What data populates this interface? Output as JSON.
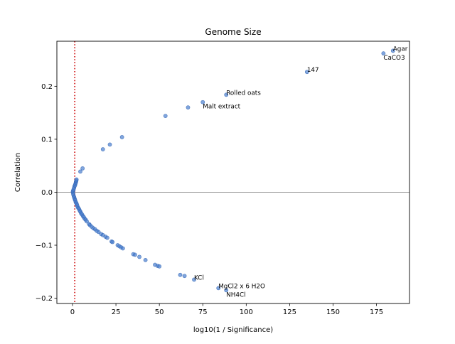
{
  "chart_data": {
    "type": "scatter",
    "title": "Genome Size",
    "xlabel": "log10(1 / Significance)",
    "ylabel": "Correlation",
    "xlim": [
      -9,
      194
    ],
    "ylim": [
      -0.21,
      0.285
    ],
    "xticks": [
      0,
      25,
      50,
      75,
      100,
      125,
      150,
      175
    ],
    "yticks": [
      -0.2,
      -0.1,
      0.0,
      0.1,
      0.2
    ],
    "point_color": "#4a7fcf",
    "point_edge_color": "#2a5fb0",
    "threshold_line": {
      "x": 1.3,
      "color": "#cc0000",
      "style": "dotted"
    },
    "zero_line": {
      "y": 0,
      "color": "#888888"
    },
    "grid": false,
    "points": [
      {
        "x": 0.3,
        "y": -0.002
      },
      {
        "x": 0.2,
        "y": 0.001
      },
      {
        "x": 0.4,
        "y": 0.003
      },
      {
        "x": 0.5,
        "y": -0.005
      },
      {
        "x": 0.6,
        "y": 0.005
      },
      {
        "x": 0.8,
        "y": -0.008
      },
      {
        "x": 0.9,
        "y": 0.008
      },
      {
        "x": 1.0,
        "y": -0.01
      },
      {
        "x": 1.1,
        "y": 0.011
      },
      {
        "x": 1.3,
        "y": -0.013
      },
      {
        "x": 1.4,
        "y": 0.013
      },
      {
        "x": 1.5,
        "y": -0.015
      },
      {
        "x": 1.6,
        "y": 0.015
      },
      {
        "x": 1.8,
        "y": -0.018
      },
      {
        "x": 1.9,
        "y": 0.018
      },
      {
        "x": 2.1,
        "y": -0.02
      },
      {
        "x": 2.0,
        "y": 0.02
      },
      {
        "x": 2.4,
        "y": -0.022
      },
      {
        "x": 2.2,
        "y": 0.022
      },
      {
        "x": 2.3,
        "y": 0.024
      },
      {
        "x": 2.7,
        "y": -0.025
      },
      {
        "x": 3.0,
        "y": -0.028
      },
      {
        "x": 3.4,
        "y": -0.03
      },
      {
        "x": 3.8,
        "y": -0.032
      },
      {
        "x": 4.2,
        "y": -0.035
      },
      {
        "x": 4.6,
        "y": -0.037
      },
      {
        "x": 5.0,
        "y": -0.04
      },
      {
        "x": 5.5,
        "y": -0.042
      },
      {
        "x": 6.0,
        "y": -0.045
      },
      {
        "x": 6.5,
        "y": -0.047
      },
      {
        "x": 7.0,
        "y": -0.05
      },
      {
        "x": 7.6,
        "y": -0.052
      },
      {
        "x": 8.2,
        "y": -0.055
      },
      {
        "x": 9.5,
        "y": -0.06
      },
      {
        "x": 10.0,
        "y": -0.062
      },
      {
        "x": 11.0,
        "y": -0.065
      },
      {
        "x": 12.0,
        "y": -0.068
      },
      {
        "x": 13.0,
        "y": -0.07
      },
      {
        "x": 14.0,
        "y": -0.073
      },
      {
        "x": 15.0,
        "y": -0.075
      },
      {
        "x": 16.5,
        "y": -0.079
      },
      {
        "x": 17.5,
        "y": -0.081
      },
      {
        "x": 19.0,
        "y": -0.084
      },
      {
        "x": 20.0,
        "y": -0.086
      },
      {
        "x": 22.5,
        "y": -0.093
      },
      {
        "x": 23.0,
        "y": -0.094
      },
      {
        "x": 26.0,
        "y": -0.1
      },
      {
        "x": 27.0,
        "y": -0.102
      },
      {
        "x": 28.0,
        "y": -0.104
      },
      {
        "x": 29.0,
        "y": -0.106
      },
      {
        "x": 35.0,
        "y": -0.117
      },
      {
        "x": 36.0,
        "y": -0.118
      },
      {
        "x": 38.5,
        "y": -0.122
      },
      {
        "x": 42.0,
        "y": -0.128
      },
      {
        "x": 47.5,
        "y": -0.137
      },
      {
        "x": 49.0,
        "y": -0.139
      },
      {
        "x": 50.0,
        "y": -0.14
      },
      {
        "x": 62.0,
        "y": -0.156
      },
      {
        "x": 64.5,
        "y": -0.158
      },
      {
        "x": 70.0,
        "y": -0.165
      },
      {
        "x": 84.0,
        "y": -0.181
      },
      {
        "x": 88.5,
        "y": -0.185
      },
      {
        "x": 4.5,
        "y": 0.039
      },
      {
        "x": 5.8,
        "y": 0.045
      },
      {
        "x": 17.5,
        "y": 0.081
      },
      {
        "x": 21.5,
        "y": 0.09
      },
      {
        "x": 28.5,
        "y": 0.104
      },
      {
        "x": 53.5,
        "y": 0.144
      },
      {
        "x": 66.5,
        "y": 0.16
      },
      {
        "x": 75.0,
        "y": 0.17
      },
      {
        "x": 88.5,
        "y": 0.184
      },
      {
        "x": 135.0,
        "y": 0.227
      },
      {
        "x": 179.0,
        "y": 0.262
      },
      {
        "x": 184.5,
        "y": 0.267
      }
    ],
    "annotations": [
      {
        "text": "Agar",
        "x": 184.5,
        "y": 0.267
      },
      {
        "text": "CaCO3",
        "x": 179.0,
        "y": 0.262,
        "va": "top"
      },
      {
        "text": "147",
        "x": 135.0,
        "y": 0.227
      },
      {
        "text": "Rolled oats",
        "x": 88.5,
        "y": 0.184
      },
      {
        "text": "Malt extract",
        "x": 75.0,
        "y": 0.17,
        "va": "top"
      },
      {
        "text": "KCl",
        "x": 70.0,
        "y": -0.165
      },
      {
        "text": "MgCl2 x 6 H2O",
        "x": 84.0,
        "y": -0.181
      },
      {
        "text": "NH4Cl",
        "x": 88.5,
        "y": -0.185,
        "va": "top"
      }
    ]
  }
}
